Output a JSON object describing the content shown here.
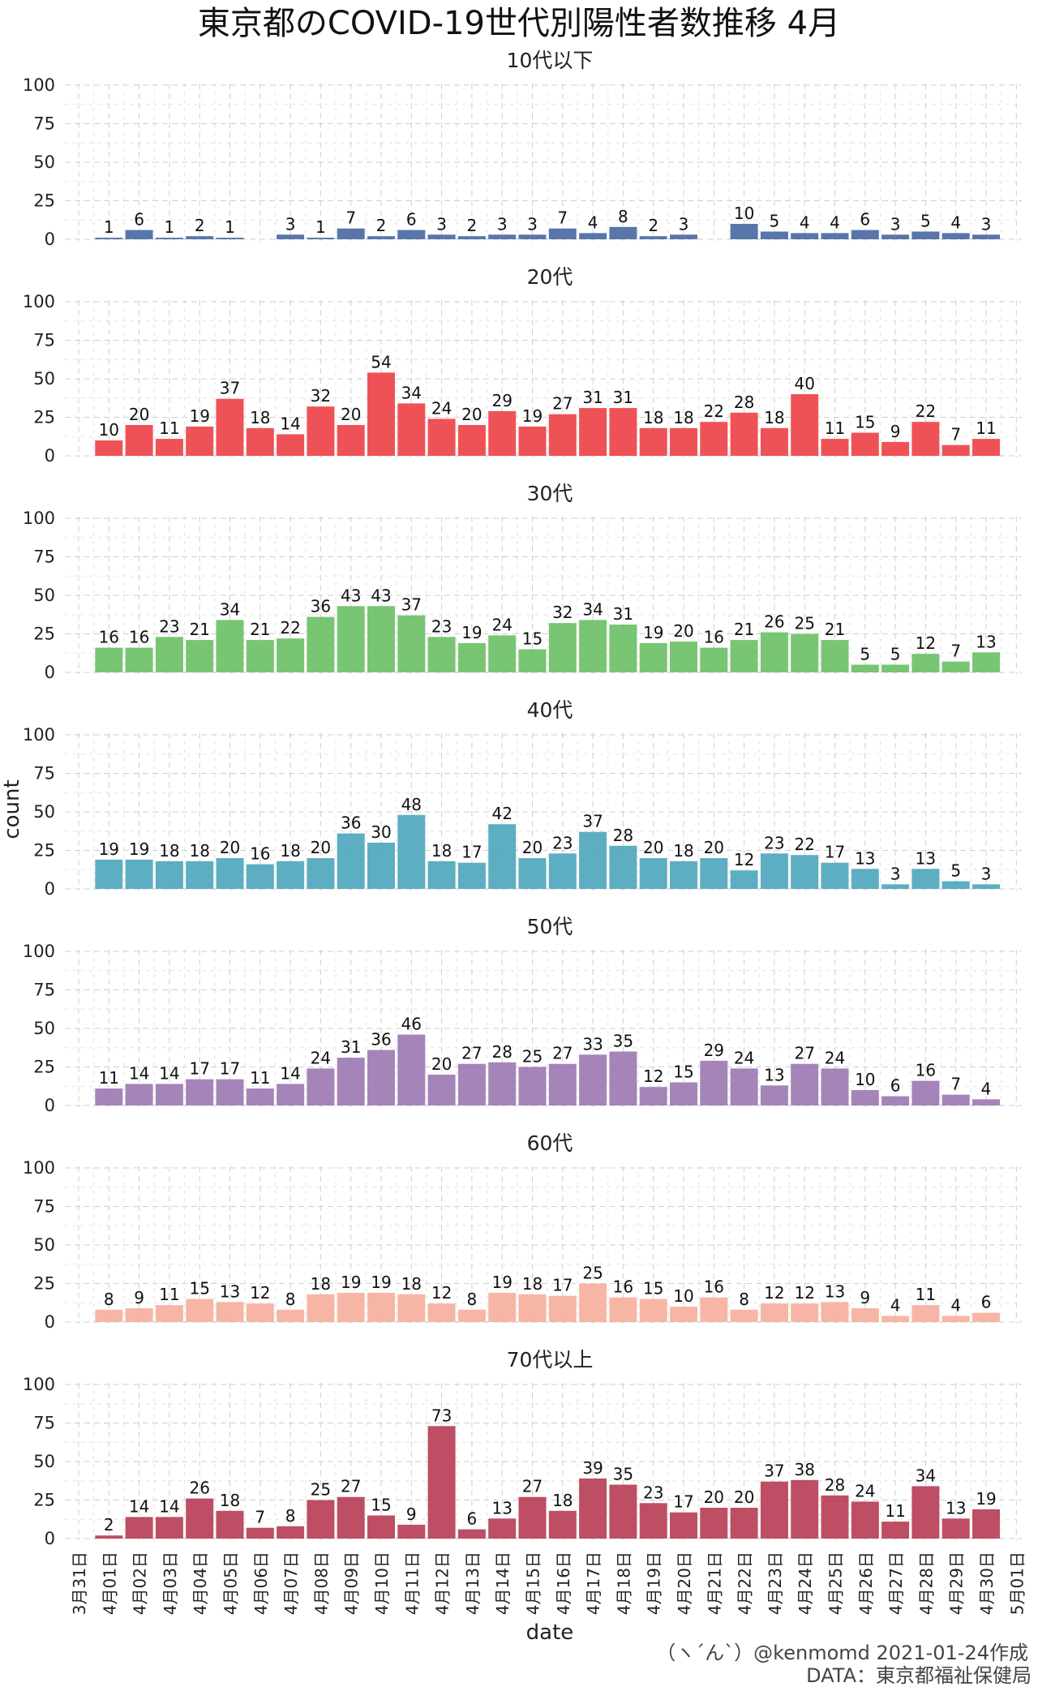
{
  "chart_data": {
    "type": "bar",
    "title": "東京都のCOVID-19世代別陽性者数推移 4月",
    "xlabel": "date",
    "ylabel": "count",
    "ylim": [
      0,
      100
    ],
    "yticks": [
      0,
      25,
      50,
      75,
      100
    ],
    "grid": true,
    "x_ticks": [
      "3月31日",
      "4月01日",
      "4月02日",
      "4月03日",
      "4月04日",
      "4月05日",
      "4月06日",
      "4月07日",
      "4月08日",
      "4月09日",
      "4月10日",
      "4月11日",
      "4月12日",
      "4月13日",
      "4月14日",
      "4月15日",
      "4月16日",
      "4月17日",
      "4月18日",
      "4月19日",
      "4月20日",
      "4月21日",
      "4月22日",
      "4月23日",
      "4月24日",
      "4月25日",
      "4月26日",
      "4月27日",
      "4月28日",
      "4月29日",
      "4月30日",
      "5月01日"
    ],
    "categories": [
      "4月01日",
      "4月02日",
      "4月03日",
      "4月04日",
      "4月05日",
      "4月06日",
      "4月07日",
      "4月08日",
      "4月09日",
      "4月10日",
      "4月11日",
      "4月12日",
      "4月13日",
      "4月14日",
      "4月15日",
      "4月16日",
      "4月17日",
      "4月18日",
      "4月19日",
      "4月20日",
      "4月21日",
      "4月22日",
      "4月23日",
      "4月24日",
      "4月25日",
      "4月26日",
      "4月27日",
      "4月28日",
      "4月29日",
      "4月30日"
    ],
    "series": [
      {
        "name": "10代以下",
        "color": "#4a6aa2",
        "values": [
          1,
          6,
          1,
          2,
          1,
          null,
          3,
          1,
          7,
          2,
          6,
          3,
          2,
          3,
          3,
          7,
          4,
          8,
          2,
          3,
          null,
          10,
          5,
          4,
          4,
          6,
          3,
          5,
          4,
          3
        ]
      },
      {
        "name": "20代",
        "color": "#ee4348",
        "values": [
          10,
          20,
          11,
          19,
          37,
          18,
          14,
          32,
          20,
          54,
          34,
          24,
          20,
          29,
          19,
          27,
          31,
          31,
          18,
          18,
          22,
          28,
          18,
          40,
          11,
          15,
          9,
          22,
          7,
          11
        ]
      },
      {
        "name": "30代",
        "color": "#6cc067",
        "values": [
          16,
          16,
          23,
          21,
          34,
          21,
          22,
          36,
          43,
          43,
          37,
          23,
          19,
          24,
          15,
          32,
          34,
          31,
          19,
          20,
          16,
          21,
          26,
          25,
          21,
          5,
          5,
          12,
          7,
          13
        ]
      },
      {
        "name": "40代",
        "color": "#4fa7bd",
        "values": [
          19,
          19,
          18,
          18,
          20,
          16,
          18,
          20,
          36,
          30,
          48,
          18,
          17,
          42,
          20,
          23,
          37,
          28,
          20,
          18,
          20,
          12,
          23,
          22,
          17,
          13,
          3,
          13,
          5,
          3
        ]
      },
      {
        "name": "50代",
        "color": "#9d79b4",
        "values": [
          11,
          14,
          14,
          17,
          17,
          11,
          14,
          24,
          31,
          36,
          46,
          20,
          27,
          28,
          25,
          27,
          33,
          35,
          12,
          15,
          29,
          24,
          13,
          27,
          24,
          10,
          6,
          16,
          7,
          4
        ]
      },
      {
        "name": "60代",
        "color": "#f6b09d",
        "values": [
          8,
          9,
          11,
          15,
          13,
          12,
          8,
          18,
          19,
          19,
          18,
          12,
          8,
          19,
          18,
          17,
          25,
          16,
          15,
          10,
          16,
          8,
          12,
          12,
          13,
          9,
          4,
          11,
          4,
          6
        ]
      },
      {
        "name": "70代以上",
        "color": "#b73f57",
        "values": [
          2,
          14,
          14,
          26,
          18,
          7,
          8,
          25,
          27,
          15,
          9,
          73,
          6,
          13,
          27,
          18,
          39,
          35,
          23,
          17,
          20,
          20,
          37,
          38,
          28,
          24,
          11,
          34,
          13,
          19
        ]
      }
    ]
  },
  "caption": {
    "line1": "（ヽ´ん`）@kenmomd 2021-01-24作成",
    "line2": "DATA：東京都福祉保健局"
  }
}
